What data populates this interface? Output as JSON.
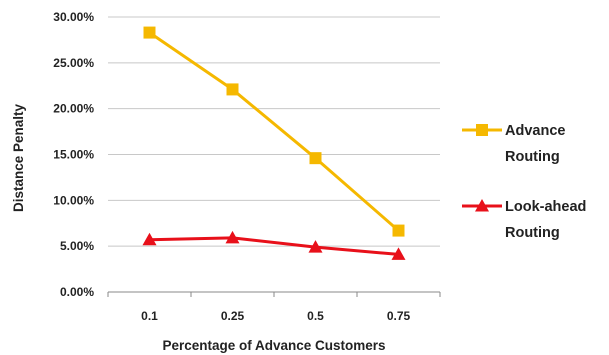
{
  "chart_data": {
    "type": "line",
    "categories": [
      "0.1",
      "0.25",
      "0.5",
      "0.75"
    ],
    "series": [
      {
        "name": "Advance Routing",
        "legend_lines": [
          "Advance",
          "Routing"
        ],
        "values": [
          28.3,
          22.1,
          14.6,
          6.7
        ],
        "color": "#F5B800",
        "marker": "square"
      },
      {
        "name": "Look-ahead Routing",
        "legend_lines": [
          "Look-ahead",
          "Routing"
        ],
        "values": [
          5.7,
          5.9,
          4.9,
          4.1
        ],
        "color": "#E8101A",
        "marker": "triangle"
      }
    ],
    "y_ticks": [
      "0.00%",
      "5.00%",
      "10.00%",
      "15.00%",
      "20.00%",
      "25.00%",
      "30.00%"
    ],
    "ylim": [
      0,
      30
    ],
    "xlabel": "Percentage of Advance Customers",
    "ylabel": "Distance Penalty",
    "grid": true,
    "legend_position": "right"
  }
}
